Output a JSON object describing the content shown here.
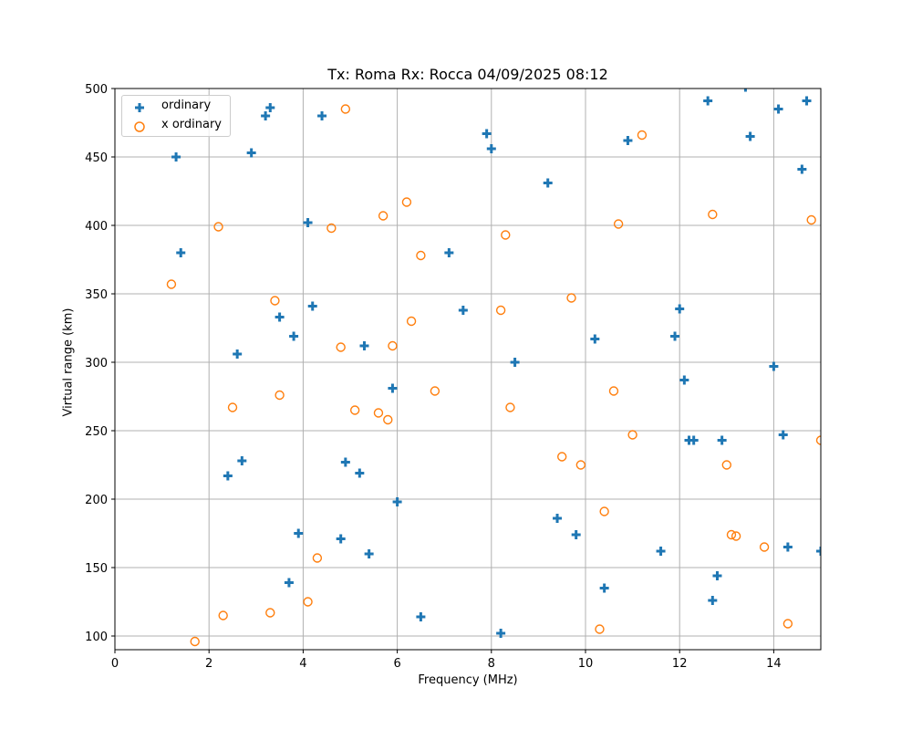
{
  "chart_data": {
    "type": "scatter",
    "title": "Tx: Roma Rx: Rocca 04/09/2025 08:12",
    "xlabel": "Frequency (MHz)",
    "ylabel": "Virtual range (km)",
    "xlim": [
      0,
      15
    ],
    "ylim": [
      90,
      500
    ],
    "xticks": [
      0,
      2,
      4,
      6,
      8,
      10,
      12,
      14
    ],
    "yticks": [
      100,
      150,
      200,
      250,
      300,
      350,
      400,
      450,
      500
    ],
    "grid": true,
    "legend_position": "upper left",
    "series": [
      {
        "name": "ordinary",
        "marker": "plus",
        "color": "#1f77b4",
        "points": [
          [
            1.3,
            450
          ],
          [
            1.4,
            380
          ],
          [
            2.4,
            217
          ],
          [
            2.6,
            306
          ],
          [
            2.7,
            228
          ],
          [
            2.9,
            453
          ],
          [
            3.2,
            480
          ],
          [
            3.3,
            486
          ],
          [
            3.5,
            333
          ],
          [
            3.7,
            139
          ],
          [
            3.8,
            319
          ],
          [
            3.9,
            175
          ],
          [
            4.1,
            402
          ],
          [
            4.2,
            341
          ],
          [
            4.4,
            480
          ],
          [
            4.8,
            171
          ],
          [
            4.9,
            227
          ],
          [
            5.2,
            219
          ],
          [
            5.3,
            312
          ],
          [
            5.4,
            160
          ],
          [
            5.9,
            281
          ],
          [
            6.0,
            198
          ],
          [
            6.5,
            114
          ],
          [
            7.1,
            380
          ],
          [
            7.4,
            338
          ],
          [
            7.9,
            467
          ],
          [
            8.0,
            456
          ],
          [
            8.2,
            102
          ],
          [
            8.5,
            300
          ],
          [
            9.2,
            431
          ],
          [
            9.4,
            186
          ],
          [
            9.8,
            174
          ],
          [
            10.2,
            317
          ],
          [
            10.4,
            135
          ],
          [
            10.9,
            462
          ],
          [
            11.6,
            162
          ],
          [
            11.9,
            319
          ],
          [
            12.0,
            339
          ],
          [
            12.1,
            287
          ],
          [
            12.2,
            243
          ],
          [
            12.3,
            243
          ],
          [
            12.6,
            491
          ],
          [
            12.7,
            126
          ],
          [
            12.8,
            144
          ],
          [
            12.9,
            243
          ],
          [
            13.4,
            501
          ],
          [
            13.5,
            465
          ],
          [
            14.0,
            297
          ],
          [
            14.1,
            485
          ],
          [
            14.2,
            247
          ],
          [
            14.3,
            165
          ],
          [
            14.6,
            441
          ],
          [
            14.7,
            491
          ],
          [
            15.0,
            162
          ]
        ]
      },
      {
        "name": "x ordinary",
        "marker": "circle-open",
        "color": "#ff7f0e",
        "points": [
          [
            1.2,
            357
          ],
          [
            1.7,
            96
          ],
          [
            2.2,
            399
          ],
          [
            2.3,
            115
          ],
          [
            2.5,
            267
          ],
          [
            3.3,
            117
          ],
          [
            3.4,
            345
          ],
          [
            3.5,
            276
          ],
          [
            4.1,
            125
          ],
          [
            4.3,
            157
          ],
          [
            4.6,
            398
          ],
          [
            4.8,
            311
          ],
          [
            4.9,
            485
          ],
          [
            5.1,
            265
          ],
          [
            5.6,
            263
          ],
          [
            5.7,
            407
          ],
          [
            5.8,
            258
          ],
          [
            5.9,
            312
          ],
          [
            6.2,
            417
          ],
          [
            6.3,
            330
          ],
          [
            6.5,
            378
          ],
          [
            6.8,
            279
          ],
          [
            8.2,
            338
          ],
          [
            8.3,
            393
          ],
          [
            8.4,
            267
          ],
          [
            9.5,
            231
          ],
          [
            9.7,
            347
          ],
          [
            9.9,
            225
          ],
          [
            10.3,
            105
          ],
          [
            10.4,
            191
          ],
          [
            10.6,
            279
          ],
          [
            10.7,
            401
          ],
          [
            11.0,
            247
          ],
          [
            11.2,
            466
          ],
          [
            12.7,
            408
          ],
          [
            13.0,
            225
          ],
          [
            13.1,
            174
          ],
          [
            13.2,
            173
          ],
          [
            13.8,
            165
          ],
          [
            14.3,
            109
          ],
          [
            14.8,
            404
          ],
          [
            15.0,
            243
          ]
        ]
      }
    ]
  },
  "legend": {
    "items": [
      {
        "label": "ordinary"
      },
      {
        "label": "x ordinary"
      }
    ]
  }
}
